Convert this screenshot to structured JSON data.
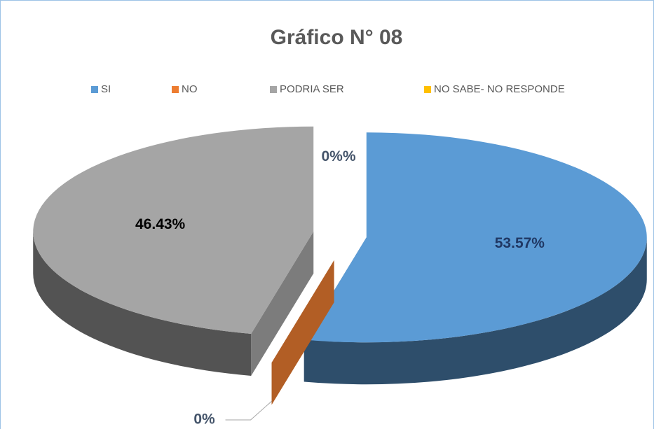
{
  "chart_data": {
    "type": "pie3d",
    "title": "Gráfico N° 08",
    "categories": [
      "SI",
      "NO",
      "PODRIA SER",
      "NO SABE- NO RESPONDE"
    ],
    "values": [
      53.57,
      0,
      46.43,
      0
    ],
    "value_labels": [
      "53.57%",
      "0%",
      "46.43%",
      "0%%"
    ],
    "colors": [
      "#5b9bd5",
      "#ed7d31",
      "#a5a5a5",
      "#ffc000"
    ],
    "legend": "top"
  }
}
